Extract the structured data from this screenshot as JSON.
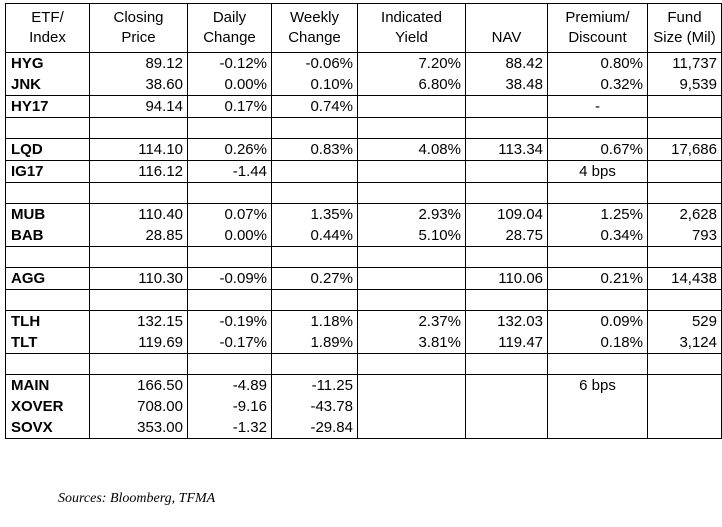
{
  "headers": [
    [
      "ETF/",
      "Index"
    ],
    [
      "Closing",
      "Price"
    ],
    [
      "Daily",
      "Change"
    ],
    [
      "Weekly",
      "Change"
    ],
    [
      "Indicated",
      "Yield"
    ],
    [
      "",
      "NAV"
    ],
    [
      "Premium/",
      "Discount"
    ],
    [
      "Fund",
      "Size (Mil)"
    ]
  ],
  "groups": [
    {
      "rows": [
        [
          "HYG",
          "89.12",
          "-0.12%",
          "-0.06%",
          "7.20%",
          "88.42",
          "0.80%",
          "11,737"
        ],
        [
          "JNK",
          "38.60",
          "0.00%",
          "0.10%",
          "6.80%",
          "38.48",
          "0.32%",
          "9,539"
        ]
      ]
    },
    {
      "rows": [
        [
          "HY17",
          "94.14",
          "0.17%",
          "0.74%",
          "",
          "",
          "-",
          ""
        ]
      ]
    },
    {
      "sep": true
    },
    {
      "rows": [
        [
          "LQD",
          "114.10",
          "0.26%",
          "0.83%",
          "4.08%",
          "113.34",
          "0.67%",
          "17,686"
        ]
      ]
    },
    {
      "rows": [
        [
          "IG17",
          "116.12",
          "-1.44",
          "",
          "",
          "",
          "4 bps",
          ""
        ]
      ]
    },
    {
      "sep": true
    },
    {
      "rows": [
        [
          "MUB",
          "110.40",
          "0.07%",
          "1.35%",
          "2.93%",
          "109.04",
          "1.25%",
          "2,628"
        ],
        [
          "BAB",
          "28.85",
          "0.00%",
          "0.44%",
          "5.10%",
          "28.75",
          "0.34%",
          "793"
        ]
      ]
    },
    {
      "sep": true
    },
    {
      "rows": [
        [
          "AGG",
          "110.30",
          "-0.09%",
          "0.27%",
          "",
          "110.06",
          "0.21%",
          "14,438"
        ]
      ]
    },
    {
      "sep": true
    },
    {
      "rows": [
        [
          "TLH",
          "132.15",
          "-0.19%",
          "1.18%",
          "2.37%",
          "132.03",
          "0.09%",
          "529"
        ],
        [
          "TLT",
          "119.69",
          "-0.17%",
          "1.89%",
          "3.81%",
          "119.47",
          "0.18%",
          "3,124"
        ]
      ]
    },
    {
      "sep": true
    },
    {
      "rows": [
        [
          "MAIN",
          "166.50",
          "-4.89",
          "-11.25",
          "",
          "",
          "6 bps",
          ""
        ],
        [
          "XOVER",
          "708.00",
          "-9.16",
          "-43.78",
          "",
          "",
          "",
          ""
        ],
        [
          "SOVX",
          "353.00",
          "-1.32",
          "-29.84",
          "",
          "",
          "",
          ""
        ]
      ]
    }
  ],
  "footer": "Sources: Bloomberg, TFMA"
}
